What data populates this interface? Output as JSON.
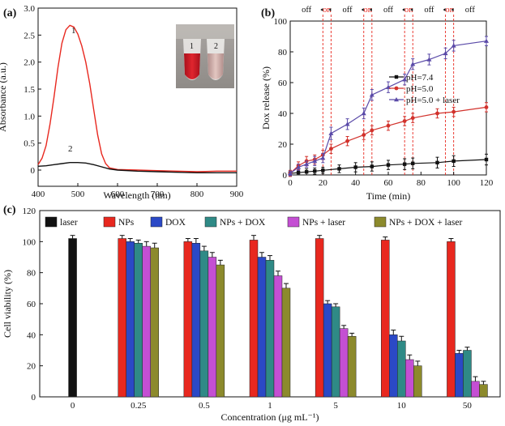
{
  "panels": {
    "a": {
      "label": "(a)"
    },
    "b": {
      "label": "(b)"
    },
    "c": {
      "label": "(c)"
    }
  },
  "inset": {
    "tube1": "1",
    "tube2": "2"
  },
  "colors": {
    "red": "#e8281f",
    "black": "#111111",
    "blue": "#2b49c6",
    "teal": "#2f8a86",
    "purple": "#c44fd3",
    "olive": "#8c8a2c",
    "redline": "#d2322c",
    "purpleline": "#5a4aa8"
  },
  "chart_data": [
    {
      "id": "a",
      "type": "line",
      "xlabel": "Wavelength (nm)",
      "ylabel": "Absorbance (a.u.)",
      "xlim": [
        400,
        900
      ],
      "ylim": [
        -0.3,
        3.0
      ],
      "xticks": [
        "400",
        "500",
        "600",
        "700",
        "800",
        "900"
      ],
      "xtick_values": [
        400,
        500,
        600,
        700,
        800,
        900
      ],
      "yticks": [
        "0",
        "0.5",
        "1.0",
        "1.5",
        "2.0",
        "2.5",
        "3.0"
      ],
      "ytick_values": [
        0,
        0.5,
        1.0,
        1.5,
        2.0,
        2.5,
        3.0
      ],
      "series": [
        {
          "name": "1",
          "color": "#e8281f",
          "x": [
            400,
            410,
            420,
            430,
            440,
            450,
            460,
            470,
            480,
            490,
            500,
            510,
            520,
            530,
            540,
            550,
            560,
            570,
            580,
            600,
            650,
            700,
            750,
            800,
            850,
            900
          ],
          "y": [
            0.1,
            0.22,
            0.45,
            0.85,
            1.35,
            1.9,
            2.35,
            2.6,
            2.68,
            2.65,
            2.52,
            2.3,
            2.0,
            1.6,
            1.12,
            0.65,
            0.3,
            0.12,
            0.04,
            0.01,
            0.0,
            -0.01,
            -0.02,
            -0.03,
            -0.02,
            -0.02
          ]
        },
        {
          "name": "2",
          "color": "#111111",
          "x": [
            400,
            420,
            440,
            460,
            480,
            500,
            520,
            540,
            560,
            580,
            600,
            650,
            700,
            750,
            800,
            850,
            900
          ],
          "y": [
            0.07,
            0.08,
            0.1,
            0.12,
            0.14,
            0.14,
            0.13,
            0.1,
            0.06,
            0.02,
            0.0,
            -0.02,
            -0.03,
            -0.04,
            -0.05,
            -0.05,
            -0.05
          ]
        }
      ],
      "annotations": [
        "1",
        "2"
      ]
    },
    {
      "id": "b",
      "type": "line",
      "xlabel": "Time (min)",
      "ylabel": "Dox release (%)",
      "xlim": [
        0,
        120
      ],
      "ylim": [
        0,
        100
      ],
      "xticks": [
        "0",
        "20",
        "40",
        "60",
        "80",
        "100",
        "120"
      ],
      "xtick_values": [
        0,
        20,
        40,
        60,
        80,
        100,
        120
      ],
      "yticks": [
        "0",
        "20",
        "40",
        "60",
        "80",
        "100"
      ],
      "ytick_values": [
        0,
        20,
        40,
        60,
        80,
        100
      ],
      "legend": "center-right",
      "series": [
        {
          "name": "pH=7.4",
          "color": "#111111",
          "marker": "square",
          "x": [
            0,
            5,
            10,
            15,
            20,
            30,
            40,
            50,
            60,
            70,
            75,
            90,
            100,
            120
          ],
          "y": [
            1,
            1.5,
            2,
            2.5,
            3,
            4,
            5,
            5.5,
            6.5,
            7,
            7.5,
            8,
            9,
            10
          ],
          "err": [
            1.5,
            1.5,
            2,
            2,
            2,
            2.5,
            3,
            3,
            3,
            3.5,
            3.5,
            3.5,
            3.5,
            3.5
          ]
        },
        {
          "name": "pH=5.0",
          "color": "#d2322c",
          "marker": "circle",
          "x": [
            0,
            5,
            10,
            15,
            20,
            25,
            35,
            45,
            50,
            60,
            70,
            75,
            90,
            100,
            120
          ],
          "y": [
            1,
            6,
            9,
            10,
            13,
            17,
            22,
            26,
            29,
            32,
            35,
            37,
            40,
            41,
            44
          ],
          "err": [
            2,
            2.5,
            3,
            3,
            3,
            3,
            3,
            3,
            3,
            3,
            3,
            3,
            3,
            3,
            3
          ]
        },
        {
          "name": "pH=5.0 + laser",
          "color": "#5a4aa8",
          "marker": "triangle",
          "x": [
            0,
            5,
            10,
            15,
            20,
            25,
            35,
            45,
            50,
            60,
            70,
            75,
            85,
            95,
            100,
            120
          ],
          "y": [
            1,
            5,
            7,
            9,
            11,
            27,
            33,
            40,
            52,
            57,
            62,
            72,
            75,
            79,
            84,
            87
          ],
          "err": [
            1.5,
            2,
            2,
            3,
            3,
            4,
            3.5,
            3.5,
            3.5,
            3.5,
            3.5,
            3.5,
            3.5,
            3.5,
            3.5,
            3
          ]
        }
      ],
      "onoff_labels": [
        "off",
        "on",
        "off",
        "on",
        "off",
        "on",
        "off",
        "on",
        "off"
      ],
      "laser_on_intervals": [
        [
          20,
          25
        ],
        [
          45,
          50
        ],
        [
          70,
          75
        ],
        [
          95,
          100
        ]
      ]
    },
    {
      "id": "c",
      "type": "bar",
      "xlabel": "Concentration (μg mL⁻¹)",
      "ylabel": "Cell viability (%)",
      "ylim": [
        0,
        120
      ],
      "yticks": [
        "0",
        "20",
        "40",
        "60",
        "80",
        "100",
        "120"
      ],
      "ytick_values": [
        0,
        20,
        40,
        60,
        80,
        100,
        120
      ],
      "categories": [
        "0",
        "0.25",
        "0.5",
        "1",
        "5",
        "10",
        "50"
      ],
      "legend": "top",
      "series": [
        {
          "name": "laser",
          "color": "#111111",
          "values": [
            102,
            null,
            null,
            null,
            null,
            null,
            null
          ],
          "err": [
            2,
            null,
            null,
            null,
            null,
            null,
            null
          ]
        },
        {
          "name": "NPs",
          "color": "#e8281f",
          "values": [
            null,
            102,
            100,
            101,
            102,
            101,
            100
          ],
          "err": [
            null,
            2,
            2,
            3,
            2,
            2,
            2
          ]
        },
        {
          "name": "DOX",
          "color": "#2b49c6",
          "values": [
            null,
            100,
            99,
            90,
            60,
            40,
            28
          ],
          "err": [
            null,
            2,
            3,
            3,
            2,
            3,
            2
          ]
        },
        {
          "name": "NPs + DOX",
          "color": "#2f8a86",
          "values": [
            null,
            99,
            94,
            88,
            58,
            36,
            30
          ],
          "err": [
            null,
            2,
            3,
            3,
            2,
            3,
            2
          ]
        },
        {
          "name": "NPs + laser",
          "color": "#c44fd3",
          "values": [
            null,
            97,
            90,
            78,
            44,
            24,
            10
          ],
          "err": [
            null,
            3,
            3,
            3,
            2,
            3,
            3
          ]
        },
        {
          "name": "NPs + DOX + laser",
          "color": "#8c8a2c",
          "values": [
            null,
            96,
            85,
            70,
            39,
            20,
            8
          ],
          "err": [
            null,
            3,
            3,
            3,
            2,
            3,
            2
          ]
        }
      ]
    }
  ]
}
